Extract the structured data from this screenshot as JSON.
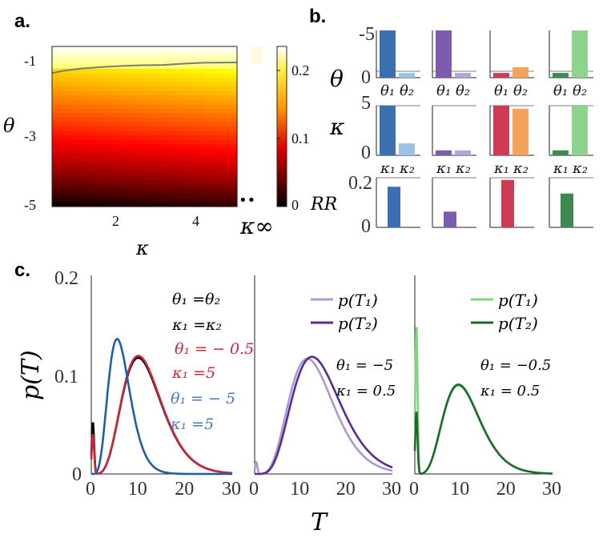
{
  "panel_labels": {
    "a": "a.",
    "b": "b.",
    "c": "c."
  },
  "colors": {
    "blue": "#3a6fb0",
    "light_blue": "#9cc2e6",
    "purple": "#7d5cb0",
    "light_purple": "#b0a6d6",
    "red": "#d03b54",
    "orange": "#f5a35a",
    "green": "#3c8a52",
    "light_green": "#8fd48c",
    "curve_black": "#000000",
    "curve_red": "#c8283c",
    "curve_blue": "#1f5fa6",
    "curve_lpurple": "#a89ad2",
    "curve_dpurple": "#5a2a96",
    "curve_lgreen": "#7fd47f",
    "curve_dgreen": "#1a6b2a",
    "contour": "#7a7a7a"
  },
  "chart_data": [
    {
      "id": "a",
      "type": "heatmap",
      "title": "",
      "xlabel": "κ",
      "ylabel": "θ",
      "xlim": [
        0.5,
        5
      ],
      "ylim": [
        -5,
        -0.5
      ],
      "xticks": [
        "2",
        "4"
      ],
      "yticks": [
        "-1",
        "-3",
        "-5"
      ],
      "extra_column_label": "κ∞",
      "extra_column_marker": "••",
      "colorbar": {
        "range": [
          0,
          0.23
        ],
        "ticks": [
          "0.2",
          "0.1",
          "0"
        ],
        "colormap": "hot"
      },
      "contour_line": {
        "kappa": [
          0.5,
          0.8,
          1.2,
          1.7,
          2.2,
          2.6,
          3.2,
          3.8,
          4.2,
          5.0
        ],
        "theta": [
          -1.25,
          -1.18,
          -1.12,
          -1.08,
          -1.05,
          -1.03,
          -1.02,
          -0.98,
          -0.96,
          -0.95
        ]
      }
    },
    {
      "id": "b",
      "type": "bar",
      "row_labels": [
        "θ",
        "κ",
        "RR"
      ],
      "theta_axis": {
        "ticks": [
          "-5",
          "0"
        ],
        "range": [
          0,
          -5
        ],
        "note": "inverted: bars grow upward toward -5"
      },
      "kappa_axis": {
        "ticks": [
          "5",
          "0"
        ],
        "range": [
          0,
          5
        ]
      },
      "rr_axis": {
        "ticks": [
          "0.2",
          "0"
        ],
        "range": [
          0,
          0.22
        ]
      },
      "theta_categories": [
        "θ₁",
        "θ₂"
      ],
      "kappa_categories": [
        "κ₁",
        "κ₂"
      ],
      "columns": [
        {
          "theta": [
            -5,
            -0.5
          ],
          "kappa": [
            5,
            1.2
          ],
          "rr": 0.18
        },
        {
          "theta": [
            -5,
            -0.5
          ],
          "kappa": [
            0.5,
            0.5
          ],
          "rr": 0.07
        },
        {
          "theta": [
            -0.5,
            -1.1
          ],
          "kappa": [
            5,
            4.7
          ],
          "rr": 0.21
        },
        {
          "theta": [
            -0.5,
            -5
          ],
          "kappa": [
            0.5,
            5
          ],
          "rr": 0.15
        }
      ]
    },
    {
      "id": "c",
      "type": "line",
      "xlabel": "T",
      "ylabel": "p(T)",
      "xlim": [
        0,
        30
      ],
      "ylim": [
        0,
        0.2
      ],
      "xticks": [
        "0",
        "10",
        "20",
        "30"
      ],
      "yticks": [
        "0.2",
        "0.1",
        "0"
      ],
      "subplots": [
        {
          "annotations": [
            {
              "text": "θ₁ =θ₂",
              "color": "black"
            },
            {
              "text": "κ₁ =κ₂",
              "color": "black"
            },
            {
              "text": "θ₁ = − 0.5",
              "color": "red"
            },
            {
              "text": "κ₁ =5",
              "color": "red"
            },
            {
              "text": "θ₁ = − 5",
              "color": "blue"
            },
            {
              "text": "κ₁ =5",
              "color": "blue"
            }
          ],
          "series": [
            {
              "name": "θ₁=θ₂, κ₁=κ₂",
              "color": "curve_black",
              "peak_x": 10,
              "peak_y": 0.117,
              "spike": 0.052
            },
            {
              "name": "θ₁=−0.5, κ₁=5",
              "color": "curve_red",
              "peak_x": 10,
              "peak_y": 0.119,
              "spike": 0.04
            },
            {
              "name": "θ₁=−5, κ₁=5",
              "color": "curve_blue",
              "peak_x": 5.5,
              "peak_y": 0.136,
              "spike": 0.0
            }
          ]
        },
        {
          "legend": [
            "p(T₁)",
            "p(T₂)"
          ],
          "annotations": [
            {
              "text": "θ₁ = −5"
            },
            {
              "text": "κ₁ = 0.5"
            }
          ],
          "series": [
            {
              "name": "p(T₁)",
              "color": "curve_lpurple",
              "peak_x": 11.5,
              "peak_y": 0.116,
              "spike": 0.012
            },
            {
              "name": "p(T₂)",
              "color": "curve_dpurple",
              "peak_x": 12.5,
              "peak_y": 0.118,
              "spike": 0.0
            }
          ]
        },
        {
          "legend": [
            "p(T₁)",
            "p(T₂)"
          ],
          "annotations": [
            {
              "text": "θ₁ = −0.5"
            },
            {
              "text": "κ₁ = 0.5"
            }
          ],
          "series": [
            {
              "name": "p(T₁)",
              "color": "curve_lgreen",
              "peak_x": 9.5,
              "peak_y": 0.089,
              "spike": 0.15
            },
            {
              "name": "p(T₂)",
              "color": "curve_dgreen",
              "peak_x": 9.5,
              "peak_y": 0.09,
              "spike": 0.063
            }
          ]
        }
      ]
    }
  ]
}
